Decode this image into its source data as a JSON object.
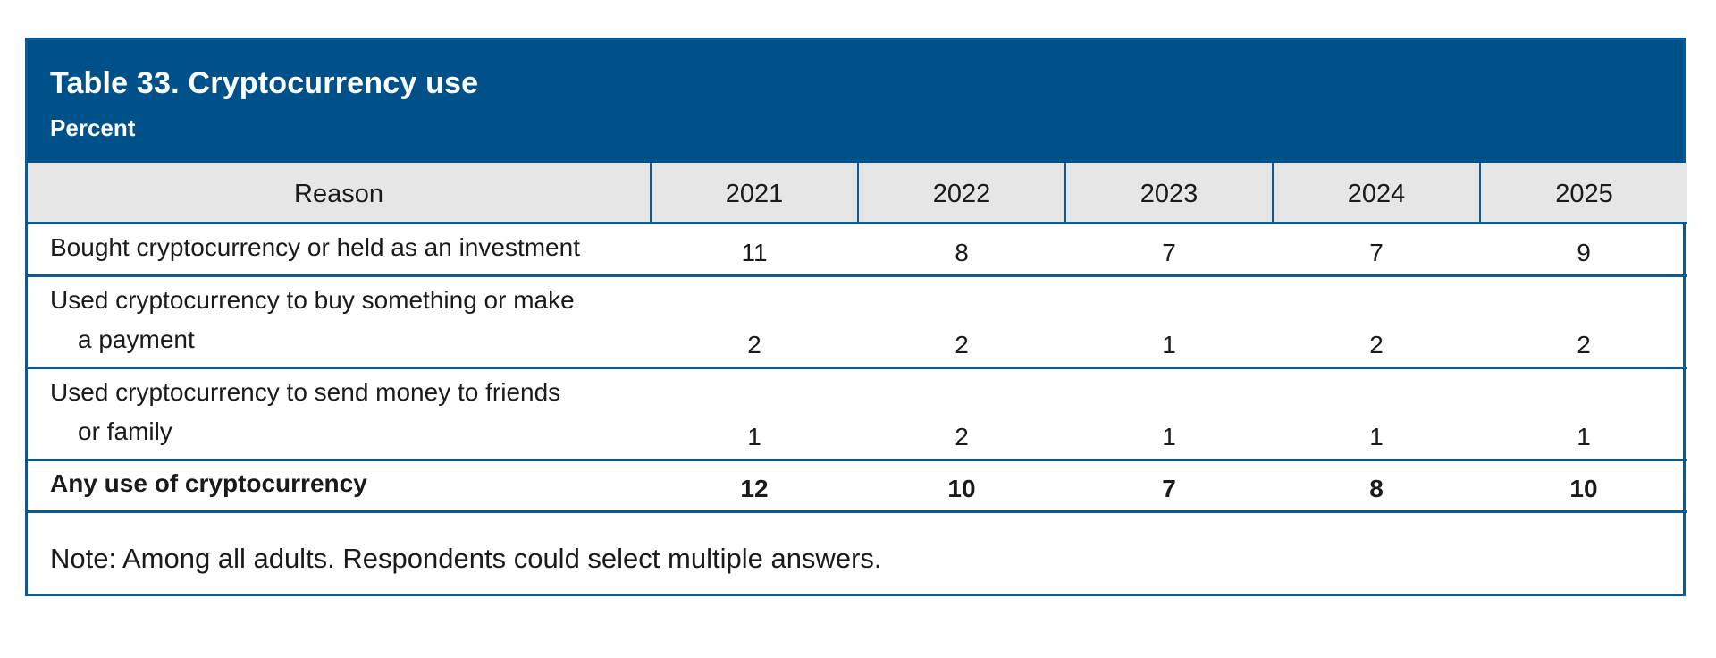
{
  "table": {
    "title": "Table 33. Cryptocurrency use",
    "subtitle": "Percent",
    "columns": [
      "Reason",
      "2021",
      "2022",
      "2023",
      "2024",
      "2025"
    ],
    "rows": [
      {
        "label_line1": "Bought cryptocurrency or held as an investment",
        "label_line2": "",
        "values": [
          "11",
          "8",
          "7",
          "7",
          "9"
        ]
      },
      {
        "label_line1": "Used cryptocurrency to buy something or make",
        "label_line2": "a payment",
        "values": [
          "2",
          "2",
          "1",
          "2",
          "2"
        ]
      },
      {
        "label_line1": "Used cryptocurrency to send money to friends",
        "label_line2": "or family",
        "values": [
          "1",
          "2",
          "1",
          "1",
          "1"
        ]
      }
    ],
    "total": {
      "label": "Any use of cryptocurrency",
      "values": [
        "12",
        "10",
        "7",
        "8",
        "10"
      ]
    },
    "note": "Note: Among all adults. Respondents could select multiple answers.",
    "colors": {
      "header_background": "#005189",
      "border": "#0a5b93",
      "column_header_background": "#e6e6e6"
    }
  }
}
